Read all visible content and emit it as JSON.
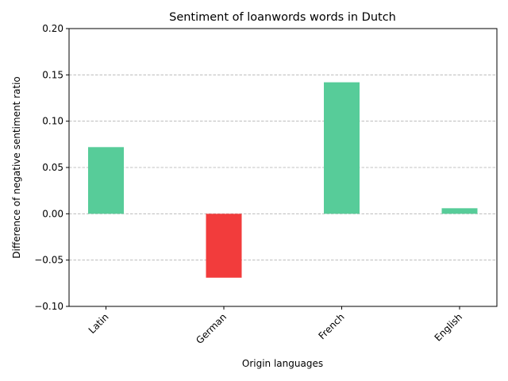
{
  "chart_data": {
    "type": "bar",
    "title": "Sentiment of loanwords words in Dutch",
    "xlabel": "Origin languages",
    "ylabel": "Difference of negative sentiment ratio",
    "categories": [
      "Latin",
      "German",
      "French",
      "English"
    ],
    "values": [
      0.072,
      -0.069,
      0.142,
      0.006
    ],
    "ylim": [
      -0.1,
      0.2
    ],
    "yticks": [
      -0.1,
      -0.05,
      0.0,
      0.05,
      0.1,
      0.15,
      0.2
    ],
    "ytick_labels": [
      "−0.10",
      "−0.05",
      "0.00",
      "0.05",
      "0.10",
      "0.15",
      "0.20"
    ],
    "grid": "horizontal dashed",
    "colors": {
      "positive": "#57cc99",
      "negative": "#f23c3c",
      "grid": "#b0b0b0"
    }
  }
}
